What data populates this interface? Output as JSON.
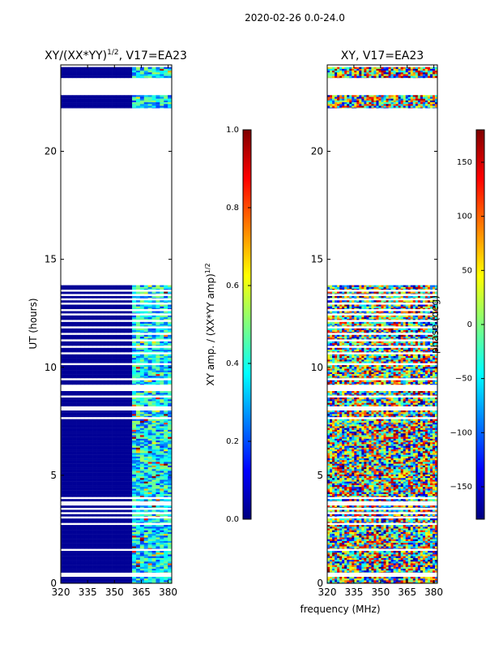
{
  "figure": {
    "suptitle": "2020-02-26 0.0-24.0",
    "common_xlabel": "frequency (MHz)"
  },
  "colors": {
    "jet": [
      "#00007f",
      "#0000ff",
      "#007fff",
      "#00ffff",
      "#7fff7f",
      "#ffff00",
      "#ff7f00",
      "#ff0000",
      "#7f0000"
    ]
  },
  "chart_data": [
    {
      "type": "heatmap",
      "title_main": "XY/(XX*YY)",
      "title_exp": "1/2",
      "title_suffix": ", V17=EA23",
      "xlabel": "",
      "ylabel": "UT (hours)",
      "xlim": [
        320,
        382
      ],
      "xticks": [
        320,
        335,
        350,
        365,
        380
      ],
      "ylim": [
        0,
        24
      ],
      "yticks": [
        0,
        5,
        10,
        15,
        20
      ],
      "valid_ut_ranges": [
        [
          0.0,
          0.3
        ],
        [
          0.5,
          1.5
        ],
        [
          1.6,
          2.7
        ],
        [
          2.8,
          3.0
        ],
        [
          3.1,
          3.2
        ],
        [
          3.3,
          3.4
        ],
        [
          3.5,
          3.6
        ],
        [
          3.8,
          3.9
        ],
        [
          4.0,
          7.6
        ],
        [
          7.7,
          8.0
        ],
        [
          8.2,
          8.6
        ],
        [
          8.7,
          8.9
        ],
        [
          9.2,
          9.4
        ],
        [
          9.5,
          10.1
        ],
        [
          10.2,
          10.6
        ],
        [
          10.7,
          10.9
        ],
        [
          11.0,
          11.2
        ],
        [
          11.3,
          11.5
        ],
        [
          11.6,
          11.8
        ],
        [
          11.9,
          12.1
        ],
        [
          12.2,
          12.4
        ],
        [
          12.5,
          12.6
        ],
        [
          12.7,
          12.9
        ],
        [
          13.0,
          13.1
        ],
        [
          13.2,
          13.3
        ],
        [
          13.4,
          13.5
        ],
        [
          13.6,
          13.8
        ],
        [
          22.0,
          22.6
        ],
        [
          23.4,
          23.9
        ]
      ],
      "colorbar": {
        "label_main": "XY amp. / (XX*YY amp)",
        "label_exp": "1/2",
        "range": [
          0,
          1
        ],
        "ticks": [
          0.0,
          0.2,
          0.4,
          0.6,
          0.8,
          1.0
        ],
        "tick_labels": [
          "0.0",
          "0.2",
          "0.4",
          "0.6",
          "0.8",
          "1.0"
        ]
      }
    },
    {
      "type": "heatmap",
      "title_main": "XY, V17=EA23",
      "xlabel": "frequency (MHz)",
      "ylabel": "",
      "xlim": [
        320,
        382
      ],
      "xticks": [
        320,
        335,
        350,
        365,
        380
      ],
      "ylim": [
        0,
        24
      ],
      "yticks": [
        0,
        5,
        10,
        15,
        20
      ],
      "valid_ut_ranges": [
        [
          0.0,
          0.3
        ],
        [
          0.5,
          1.5
        ],
        [
          1.6,
          2.7
        ],
        [
          2.8,
          3.0
        ],
        [
          3.1,
          3.2
        ],
        [
          3.3,
          3.4
        ],
        [
          3.5,
          3.6
        ],
        [
          3.8,
          3.9
        ],
        [
          4.0,
          7.6
        ],
        [
          7.7,
          8.0
        ],
        [
          8.2,
          8.6
        ],
        [
          8.7,
          8.9
        ],
        [
          9.2,
          9.4
        ],
        [
          9.5,
          10.1
        ],
        [
          10.2,
          10.6
        ],
        [
          10.7,
          10.9
        ],
        [
          11.0,
          11.2
        ],
        [
          11.3,
          11.5
        ],
        [
          11.6,
          11.8
        ],
        [
          11.9,
          12.1
        ],
        [
          12.2,
          12.4
        ],
        [
          12.5,
          12.6
        ],
        [
          12.7,
          12.9
        ],
        [
          13.0,
          13.1
        ],
        [
          13.2,
          13.3
        ],
        [
          13.4,
          13.5
        ],
        [
          13.6,
          13.8
        ],
        [
          22.0,
          22.6
        ],
        [
          23.4,
          23.9
        ]
      ],
      "colorbar": {
        "label_main": "phase (deg)",
        "range": [
          -180,
          180
        ],
        "ticks": [
          -150,
          -100,
          -50,
          0,
          50,
          100,
          150
        ],
        "tick_labels": [
          "−150",
          "−100",
          "−50",
          "0",
          "50",
          "100",
          "150"
        ]
      }
    }
  ]
}
